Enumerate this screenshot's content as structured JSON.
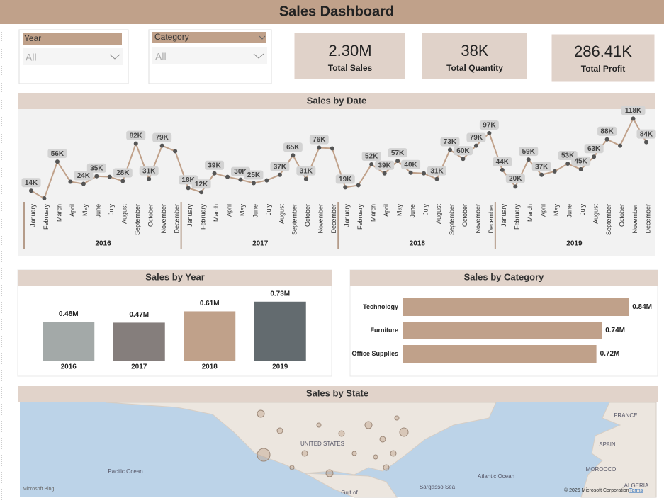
{
  "header": {
    "title": "Sales Dashboard"
  },
  "slicers": [
    {
      "label": "Year",
      "value": "All"
    },
    {
      "label": "Category",
      "value": "All"
    }
  ],
  "cards": [
    {
      "value": "2.30M",
      "label": "Total Sales"
    },
    {
      "value": "38K",
      "label": "Total Quantity"
    },
    {
      "value": "286.41K",
      "label": "Total Profit"
    }
  ],
  "chart_data": [
    {
      "type": "line",
      "title": "Sales by Date",
      "color": "#c0a18a",
      "marker_color": "#555555",
      "categories": [
        "January",
        "February",
        "March",
        "April",
        "May",
        "June",
        "July",
        "August",
        "September",
        "October",
        "November",
        "December",
        "January",
        "February",
        "March",
        "April",
        "May",
        "June",
        "July",
        "August",
        "September",
        "October",
        "November",
        "December",
        "January",
        "February",
        "March",
        "April",
        "May",
        "June",
        "July",
        "August",
        "September",
        "October",
        "November",
        "December",
        "January",
        "February",
        "March",
        "April",
        "May",
        "June",
        "July",
        "August",
        "September",
        "October",
        "November",
        "December"
      ],
      "groups": [
        "2016",
        "2017",
        "2018",
        "2019"
      ],
      "values": [
        14,
        3,
        56,
        27,
        24,
        35,
        34,
        28,
        82,
        31,
        79,
        71,
        18,
        12,
        39,
        34,
        30,
        25,
        29,
        37,
        65,
        31,
        76,
        75,
        19,
        22,
        52,
        39,
        57,
        40,
        39,
        31,
        73,
        60,
        79,
        97,
        44,
        20,
        59,
        37,
        42,
        53,
        45,
        63,
        88,
        79,
        118,
        84
      ],
      "value_labels": [
        "14K",
        null,
        "56K",
        null,
        "24K",
        "35K",
        null,
        "28K",
        "82K",
        "31K",
        "79K",
        null,
        "18K",
        "12K",
        "39K",
        null,
        "30K",
        "25K",
        null,
        "37K",
        "65K",
        "31K",
        "76K",
        null,
        "19K",
        null,
        "52K",
        "39K",
        "57K",
        "40K",
        null,
        "31K",
        "73K",
        "60K",
        "79K",
        "97K",
        "44K",
        "20K",
        "59K",
        "37K",
        null,
        "53K",
        "45K",
        "63K",
        "88K",
        null,
        "118K",
        "84K"
      ]
    },
    {
      "type": "bar",
      "title": "Sales by Year",
      "categories": [
        "2016",
        "2017",
        "2018",
        "2019"
      ],
      "values": [
        0.48,
        0.47,
        0.61,
        0.73
      ],
      "value_labels": [
        "0.48M",
        "0.47M",
        "0.61M",
        "0.73M"
      ],
      "colors": [
        "#a3a9a8",
        "#857e7c",
        "#c0a18a",
        "#636b6f"
      ]
    },
    {
      "type": "hbar",
      "title": "Sales by Category",
      "categories": [
        "Technology",
        "Furniture",
        "Office Supplies"
      ],
      "values": [
        0.84,
        0.74,
        0.72
      ],
      "value_labels": [
        "0.84M",
        "0.74M",
        "0.72M"
      ],
      "color": "#c0a18a"
    }
  ],
  "map": {
    "title": "Sales by State",
    "labels": [
      "UNITED STATES",
      "Pacific Ocean",
      "Atlantic Ocean",
      "FRANCE",
      "SPAIN",
      "MOROCCO",
      "ALGERIA",
      "Gulf of",
      "Sargasso Sea"
    ],
    "logo": "Microsoft Bing",
    "attribution": "© 2026 Microsoft Corporation",
    "terms": "Terms"
  }
}
